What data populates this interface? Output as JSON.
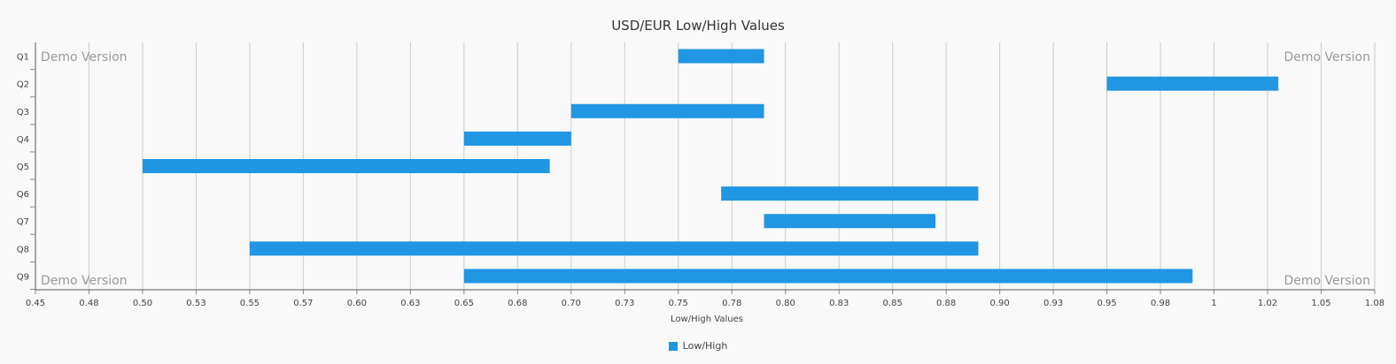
{
  "chart_data": {
    "type": "bar",
    "orientation": "horizontal-range",
    "title": "USD/EUR Low/High Values",
    "xlabel": "Low/High Values",
    "ylabel": "",
    "xlim": [
      0.45,
      1.075
    ],
    "x_ticks": [
      "0.45",
      "0.48",
      "0.50",
      "0.53",
      "0.55",
      "0.57",
      "0.60",
      "0.63",
      "0.65",
      "0.68",
      "0.70",
      "0.73",
      "0.75",
      "0.78",
      "0.80",
      "0.83",
      "0.85",
      "0.88",
      "0.90",
      "0.93",
      "0.95",
      "0.98",
      "1",
      "1.02",
      "1.05",
      "1.08"
    ],
    "categories": [
      "Q1",
      "Q2",
      "Q3",
      "Q4",
      "Q5",
      "Q6",
      "Q7",
      "Q8",
      "Q9"
    ],
    "series": [
      {
        "name": "Low/High",
        "color": "#2196e3",
        "low": [
          0.75,
          0.95,
          0.7,
          0.65,
          0.5,
          0.77,
          0.79,
          0.55,
          0.65
        ],
        "high": [
          0.79,
          1.03,
          0.79,
          0.7,
          0.69,
          0.89,
          0.87,
          0.89,
          0.99
        ]
      }
    ],
    "grid": "vertical",
    "legend_position": "bottom-center"
  },
  "watermarks": [
    "Demo Version",
    "Demo Version",
    "Demo Version",
    "Demo Version"
  ]
}
